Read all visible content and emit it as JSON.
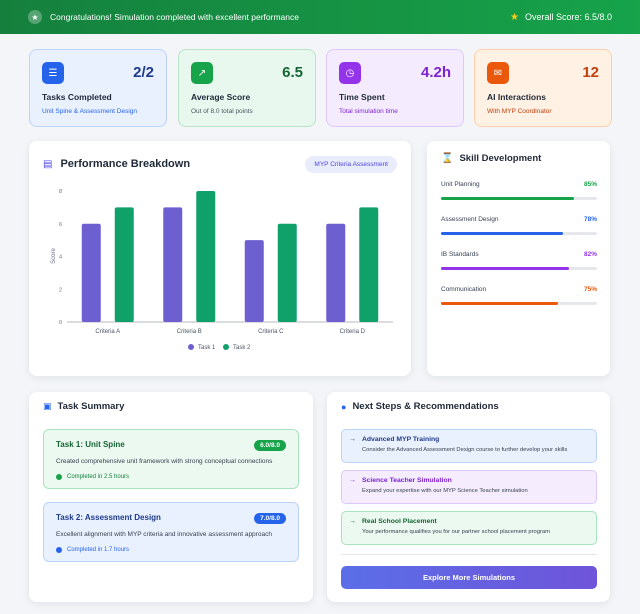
{
  "banner": {
    "message": "Congratulations! Simulation completed with excellent performance",
    "overall_score": "Overall Score: 6.5/8.0",
    "trophy_icon": "trophy-icon",
    "star_icon": "star-icon"
  },
  "stats": [
    {
      "value": "2/2",
      "title": "Tasks Completed",
      "subtitle": "Unit Spine & Assessment Design",
      "icon": "checklist-icon"
    },
    {
      "value": "6.5",
      "title": "Average Score",
      "subtitle": "Out of 8.0 total points",
      "icon": "chart-line-icon"
    },
    {
      "value": "4.2h",
      "title": "Time Spent",
      "subtitle": "Total simulation time",
      "icon": "clock-icon"
    },
    {
      "value": "12",
      "title": "AI Interactions",
      "subtitle": "With MYP Coordinator",
      "icon": "chat-icon"
    }
  ],
  "performance": {
    "title": "Performance Breakdown",
    "pill": "MYP Criteria Assessment",
    "icon": "bar-chart-icon"
  },
  "chart_data": {
    "type": "bar",
    "title": "",
    "xlabel": "",
    "ylabel": "Score",
    "categories": [
      "Criteria A",
      "Criteria B",
      "Criteria C",
      "Criteria D"
    ],
    "series": [
      {
        "name": "Task 1",
        "values": [
          6,
          7,
          5,
          6
        ],
        "color": "#6d5fd0"
      },
      {
        "name": "Task 2",
        "values": [
          7,
          8,
          6,
          7
        ],
        "color": "#10a06a"
      }
    ],
    "ylim": [
      0,
      8
    ],
    "yticks": [
      0,
      2,
      4,
      6,
      8
    ],
    "legend": "bottom",
    "grid": false
  },
  "skills": {
    "title": "Skill Development",
    "icon": "hourglass-icon",
    "items": [
      {
        "label": "Unit Planning",
        "percent": "85%",
        "value": 0.85,
        "color": "#16a34a"
      },
      {
        "label": "Assessment Design",
        "percent": "78%",
        "value": 0.78,
        "color": "#2563eb"
      },
      {
        "label": "IB Standards",
        "percent": "82%",
        "value": 0.82,
        "color": "#9333ea"
      },
      {
        "label": "Communication",
        "percent": "75%",
        "value": 0.75,
        "color": "#ea580c"
      }
    ]
  },
  "tasks": {
    "title": "Task Summary",
    "icon": "clipboard-icon",
    "items": [
      {
        "title": "Task 1: Unit Spine",
        "badge": "6.0/8.0",
        "description": "Created comprehensive unit framework with strong conceptual connections",
        "completed": "Completed in 2.5 hours"
      },
      {
        "title": "Task 2: Assessment Design",
        "badge": "7.0/8.0",
        "description": "Excellent alignment with MYP criteria and innovative assessment approach",
        "completed": "Completed in 1.7 hours"
      }
    ]
  },
  "next_steps": {
    "title": "Next Steps & Recommendations",
    "icon": "lightbulb-icon",
    "items": [
      {
        "title": "Advanced MYP Training",
        "description": "Consider the Advanced Assessment Design course to further develop your skills"
      },
      {
        "title": "Science Teacher Simulation",
        "description": "Expand your expertise with our MYP Science Teacher simulation"
      },
      {
        "title": "Real School Placement",
        "description": "Your performance qualifies you for our partner school placement program"
      }
    ],
    "button": "Explore More Simulations"
  }
}
